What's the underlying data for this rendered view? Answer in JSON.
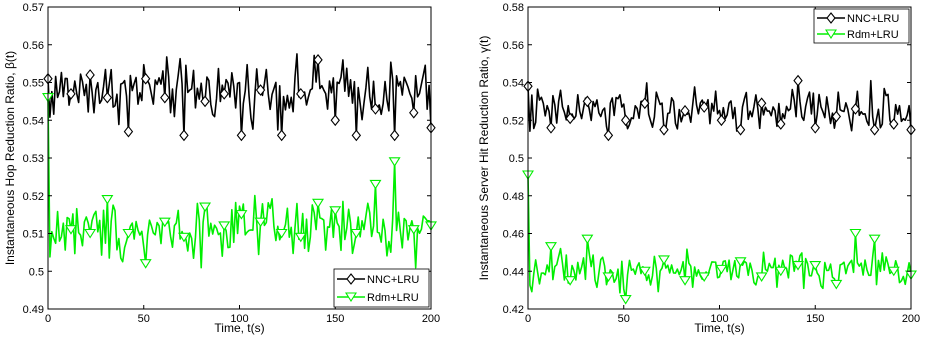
{
  "chart_data": [
    {
      "type": "line",
      "xlabel": "Time, t(s)",
      "ylabel": "Instantaneous Hop Reduction Ratio,  β(t)",
      "xlim": [
        0,
        200
      ],
      "ylim": [
        0.49,
        0.57
      ],
      "xticks": [
        0,
        50,
        100,
        150,
        200
      ],
      "yticks": [
        0.49,
        0.5,
        0.51,
        0.52,
        0.53,
        0.54,
        0.55,
        0.56,
        0.57
      ],
      "ytick_labels": [
        "0.49",
        "0.5",
        "0.51",
        "0.52",
        "0.53",
        "0.54",
        "0.55",
        "0.56",
        "0.57"
      ],
      "legend_position": "bottom-right",
      "series": [
        {
          "name": "NNC+LRU",
          "color": "#000000",
          "marker": "diamond",
          "marker_x": [
            0,
            12,
            22,
            31,
            42,
            51,
            61,
            71,
            82,
            92,
            101,
            111,
            122,
            132,
            141,
            150,
            161,
            171,
            181,
            191,
            200
          ],
          "marker_y": [
            0.551,
            0.547,
            0.552,
            0.546,
            0.537,
            0.551,
            0.546,
            0.536,
            0.545,
            0.547,
            0.536,
            0.548,
            0.536,
            0.547,
            0.556,
            0.54,
            0.536,
            0.543,
            0.536,
            0.542,
            0.538
          ],
          "mean": 0.548,
          "noise": 0.006
        },
        {
          "name": "Rdm+LRU",
          "color": "#00ee00",
          "marker": "triangle-down",
          "marker_x": [
            0,
            12,
            22,
            31,
            42,
            51,
            61,
            71,
            82,
            92,
            101,
            111,
            122,
            132,
            141,
            150,
            161,
            171,
            181,
            191,
            200
          ],
          "marker_y": [
            0.546,
            0.511,
            0.51,
            0.519,
            0.51,
            0.502,
            0.513,
            0.509,
            0.517,
            0.512,
            0.515,
            0.513,
            0.51,
            0.509,
            0.518,
            0.516,
            0.51,
            0.523,
            0.529,
            0.511,
            0.512
          ],
          "mean": 0.511,
          "noise": 0.006
        }
      ]
    },
    {
      "type": "line",
      "xlabel": "Time, t(s)",
      "ylabel": "Instantaneous Server Hit Reduction Ratio,  γ(t)",
      "xlim": [
        0,
        200
      ],
      "ylim": [
        0.42,
        0.58
      ],
      "xticks": [
        0,
        50,
        100,
        150,
        200
      ],
      "yticks": [
        0.42,
        0.44,
        0.46,
        0.48,
        0.5,
        0.52,
        0.54,
        0.56,
        0.58
      ],
      "ytick_labels": [
        "0.42",
        "0.44",
        "0.46",
        "0.48",
        "0.5",
        "0.52",
        "0.54",
        "0.56",
        "0.58"
      ],
      "legend_position": "top-right",
      "series": [
        {
          "name": "NNC+LRU",
          "color": "#000000",
          "marker": "diamond",
          "marker_x": [
            0,
            12,
            22,
            31,
            42,
            51,
            61,
            71,
            82,
            92,
            101,
            111,
            122,
            132,
            141,
            150,
            161,
            171,
            181,
            191,
            200
          ],
          "marker_y": [
            0.538,
            0.516,
            0.521,
            0.53,
            0.512,
            0.52,
            0.529,
            0.515,
            0.525,
            0.527,
            0.52,
            0.515,
            0.529,
            0.518,
            0.541,
            0.516,
            0.522,
            0.526,
            0.515,
            0.518,
            0.515
          ],
          "mean": 0.525,
          "noise": 0.009
        },
        {
          "name": "Rdm+LRU",
          "color": "#00ee00",
          "marker": "triangle-down",
          "marker_x": [
            0,
            12,
            22,
            31,
            42,
            51,
            61,
            71,
            82,
            92,
            101,
            111,
            122,
            132,
            141,
            150,
            161,
            171,
            181,
            191,
            200
          ],
          "marker_y": [
            0.491,
            0.453,
            0.435,
            0.457,
            0.437,
            0.425,
            0.44,
            0.446,
            0.435,
            0.437,
            0.441,
            0.445,
            0.437,
            0.44,
            0.443,
            0.443,
            0.433,
            0.46,
            0.457,
            0.44,
            0.438
          ],
          "mean": 0.441,
          "noise": 0.007
        }
      ]
    }
  ]
}
